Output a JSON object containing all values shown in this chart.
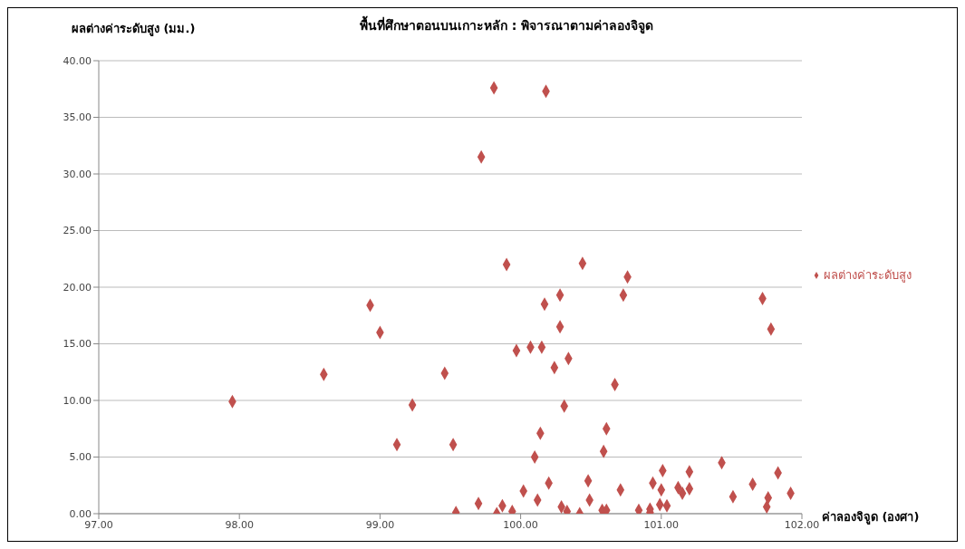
{
  "chart_data": {
    "type": "scatter",
    "title": "พื้นที่ศึกษาตอนบนเกาะหลัก : พิจารณาตามค่าลองจิจูด",
    "xlabel": "ค่าลองจิจูด (องศา)",
    "ylabel": "ผลต่างค่าระดับสูง (มม.)",
    "x": [
      97.95,
      98.6,
      98.93,
      99.0,
      99.12,
      99.23,
      99.46,
      99.52,
      99.54,
      99.7,
      99.72,
      99.81,
      99.83,
      99.87,
      99.9,
      99.94,
      99.97,
      100.02,
      100.07,
      100.1,
      100.12,
      100.14,
      100.15,
      100.17,
      100.18,
      100.2,
      100.24,
      100.28,
      100.28,
      100.29,
      100.31,
      100.33,
      100.34,
      100.42,
      100.44,
      100.48,
      100.49,
      100.58,
      100.61,
      100.61,
      100.59,
      100.67,
      100.71,
      100.73,
      100.76,
      100.84,
      100.92,
      100.92,
      100.94,
      100.99,
      101.0,
      101.01,
      101.04,
      101.12,
      101.15,
      101.2,
      101.2,
      101.43,
      101.51,
      101.65,
      101.72,
      101.75,
      101.76,
      101.78,
      101.83,
      101.92
    ],
    "series": [
      {
        "name": "ผลต่างค่าระดับสูง",
        "color": "#c0504d",
        "values": [
          9.9,
          12.3,
          18.4,
          16.0,
          6.1,
          9.6,
          12.4,
          6.1,
          0.1,
          0.9,
          31.5,
          37.6,
          0.0,
          0.7,
          22.0,
          0.2,
          14.4,
          2.0,
          14.7,
          5.0,
          1.2,
          7.1,
          14.7,
          18.5,
          37.3,
          2.7,
          12.9,
          19.3,
          16.5,
          0.6,
          9.5,
          0.2,
          13.7,
          0.0,
          22.1,
          2.9,
          1.2,
          0.3,
          0.3,
          7.5,
          5.5,
          11.4,
          2.1,
          19.3,
          20.9,
          0.3,
          0.4,
          0.1,
          2.7,
          0.8,
          2.1,
          3.8,
          0.7,
          2.3,
          1.8,
          3.7,
          2.2,
          4.5,
          1.5,
          2.6,
          19.0,
          0.6,
          1.4,
          16.3,
          3.6,
          1.8
        ]
      }
    ],
    "xlim": [
      97,
      102
    ],
    "xticks": [
      {
        "value": 97,
        "label": "97.00"
      },
      {
        "value": 98,
        "label": "98.00"
      },
      {
        "value": 99,
        "label": "99.00"
      },
      {
        "value": 100,
        "label": "100.00"
      },
      {
        "value": 101,
        "label": "101.00"
      },
      {
        "value": 102,
        "label": "102.00"
      }
    ],
    "ylim": [
      0,
      40
    ],
    "yticks": [
      {
        "value": 0,
        "label": "0.00"
      },
      {
        "value": 5,
        "label": "5.00"
      },
      {
        "value": 10,
        "label": "10.00"
      },
      {
        "value": 15,
        "label": "15.00"
      },
      {
        "value": 20,
        "label": "20.00"
      },
      {
        "value": 25,
        "label": "25.00"
      },
      {
        "value": 30,
        "label": "30.00"
      },
      {
        "value": 35,
        "label": "35.00"
      },
      {
        "value": 40,
        "label": "40.00"
      }
    ],
    "grid": "y",
    "legend": "right",
    "marker": "diamond"
  }
}
